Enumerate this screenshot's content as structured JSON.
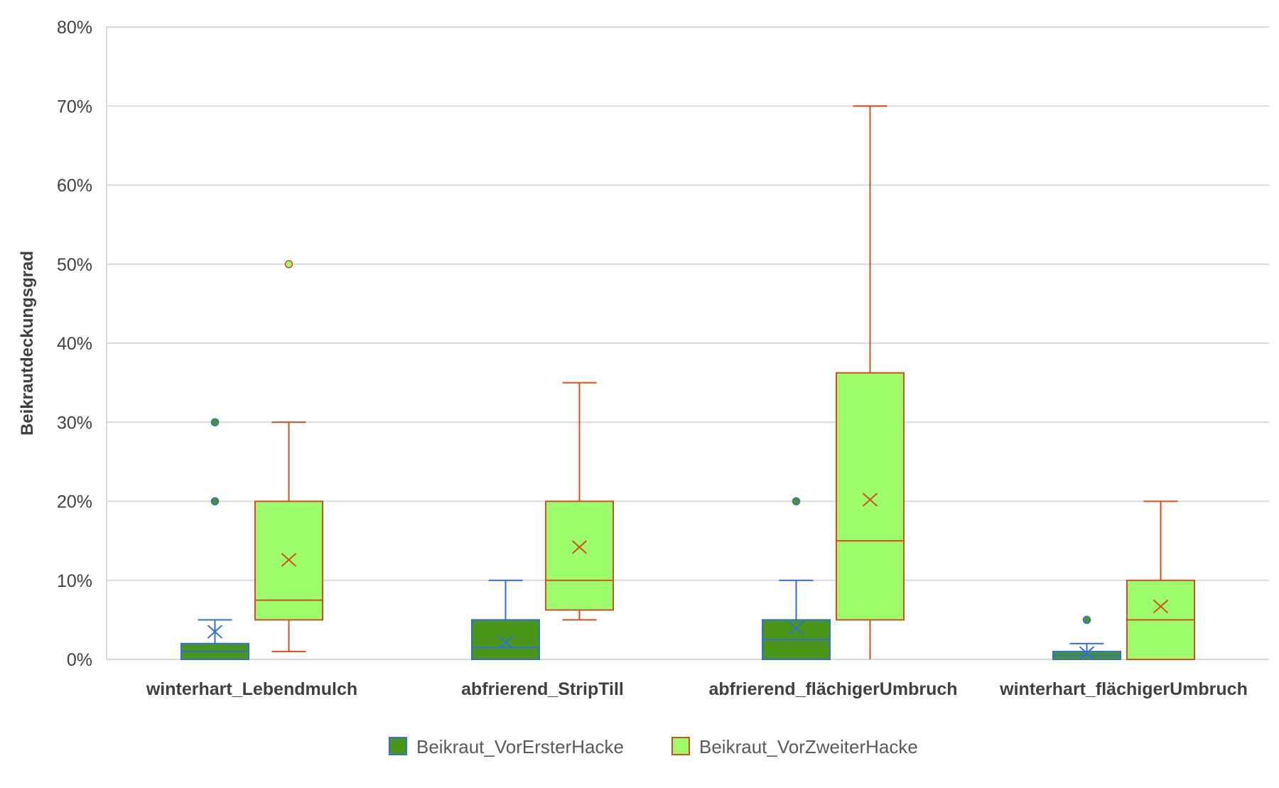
{
  "chart_data": {
    "type": "boxplot",
    "title": "",
    "xlabel": "",
    "ylabel": "Beikrautdeckungsgrad",
    "ylim": [
      0,
      80
    ],
    "yticks": [
      "0%",
      "10%",
      "20%",
      "30%",
      "40%",
      "50%",
      "60%",
      "70%",
      "80%"
    ],
    "grid": true,
    "legend_position": "bottom",
    "categories": [
      "winterhart_Lebendmulch",
      "abfrierend_StripTill",
      "abfrierend_flächigerUmbruch",
      "winterhart_flächigerUmbruch"
    ],
    "series": [
      {
        "name": "Beikraut_VorErsterHacke",
        "fill": "#4a9619",
        "stroke": "#2f6fe0",
        "boxes": [
          {
            "min": 0,
            "q1": 0,
            "median": 1,
            "q3": 2,
            "max": 5,
            "mean": 3.5,
            "outliers": [
              20,
              30
            ]
          },
          {
            "min": 0,
            "q1": 0,
            "median": 1.5,
            "q3": 5,
            "max": 10,
            "mean": 2.2,
            "outliers": []
          },
          {
            "min": 0,
            "q1": 0,
            "median": 2.5,
            "q3": 5,
            "max": 10,
            "mean": 4,
            "outliers": [
              20
            ]
          },
          {
            "min": 0,
            "q1": 0,
            "median": 0.5,
            "q3": 1,
            "max": 2,
            "mean": 0.8,
            "outliers": [
              5
            ]
          }
        ]
      },
      {
        "name": "Beikraut_VorZweiterHacke",
        "fill": "#9cfc6c",
        "stroke": "#d0501e",
        "boxes": [
          {
            "min": 1,
            "q1": 5,
            "median": 7.5,
            "q3": 20,
            "max": 30,
            "mean": 12.6,
            "outliers": [
              50
            ]
          },
          {
            "min": 5,
            "q1": 6.25,
            "median": 10,
            "q3": 20,
            "max": 35,
            "mean": 14.2,
            "outliers": []
          },
          {
            "min": 0,
            "q1": 5,
            "median": 15,
            "q3": 36.25,
            "max": 70,
            "mean": 20.2,
            "outliers": []
          },
          {
            "min": 0,
            "q1": 0,
            "median": 5,
            "q3": 10,
            "max": 20,
            "mean": 6.7,
            "outliers": []
          }
        ]
      }
    ]
  }
}
